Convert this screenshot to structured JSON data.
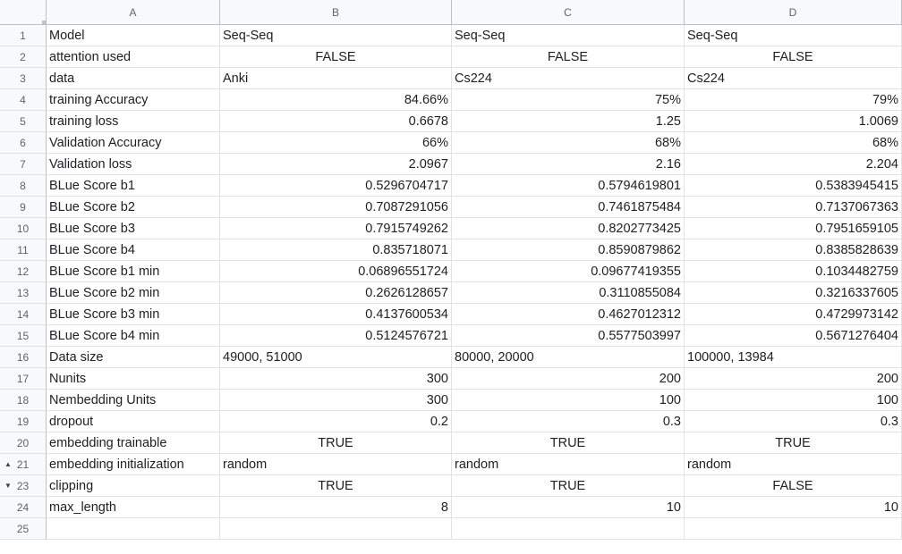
{
  "columns": [
    "A",
    "B",
    "C",
    "D"
  ],
  "rows": [
    {
      "num": "1",
      "arrow": "",
      "cells": [
        {
          "v": "Model",
          "a": "l"
        },
        {
          "v": "Seq-Seq",
          "a": "l"
        },
        {
          "v": "Seq-Seq",
          "a": "l"
        },
        {
          "v": "Seq-Seq",
          "a": "l"
        }
      ]
    },
    {
      "num": "2",
      "arrow": "",
      "cells": [
        {
          "v": " attention used",
          "a": "l"
        },
        {
          "v": "FALSE",
          "a": "c"
        },
        {
          "v": "FALSE",
          "a": "c"
        },
        {
          "v": "FALSE",
          "a": "c"
        }
      ]
    },
    {
      "num": "3",
      "arrow": "",
      "cells": [
        {
          "v": "data",
          "a": "l"
        },
        {
          "v": "Anki",
          "a": "l"
        },
        {
          "v": "Cs224",
          "a": "l"
        },
        {
          "v": "Cs224",
          "a": "l"
        }
      ]
    },
    {
      "num": "4",
      "arrow": "",
      "cells": [
        {
          "v": "training Accuracy",
          "a": "l"
        },
        {
          "v": "84.66%",
          "a": "r"
        },
        {
          "v": "75%",
          "a": "r"
        },
        {
          "v": "79%",
          "a": "r"
        }
      ]
    },
    {
      "num": "5",
      "arrow": "",
      "cells": [
        {
          "v": "training loss",
          "a": "l"
        },
        {
          "v": "0.6678",
          "a": "r"
        },
        {
          "v": "1.25",
          "a": "r"
        },
        {
          "v": "1.0069",
          "a": "r"
        }
      ]
    },
    {
      "num": "6",
      "arrow": "",
      "cells": [
        {
          "v": "Validation Accuracy",
          "a": "l"
        },
        {
          "v": "66%",
          "a": "r"
        },
        {
          "v": "68%",
          "a": "r"
        },
        {
          "v": "68%",
          "a": "r"
        }
      ]
    },
    {
      "num": "7",
      "arrow": "",
      "cells": [
        {
          "v": "Validation loss",
          "a": "l"
        },
        {
          "v": "2.0967",
          "a": "r"
        },
        {
          "v": "2.16",
          "a": "r"
        },
        {
          "v": "2.204",
          "a": "r"
        }
      ]
    },
    {
      "num": "8",
      "arrow": "",
      "cells": [
        {
          "v": "BLue Score b1",
          "a": "l"
        },
        {
          "v": "0.5296704717",
          "a": "r"
        },
        {
          "v": "0.5794619801",
          "a": "r"
        },
        {
          "v": "0.5383945415",
          "a": "r"
        }
      ]
    },
    {
      "num": "9",
      "arrow": "",
      "cells": [
        {
          "v": "BLue Score b2",
          "a": "l"
        },
        {
          "v": "0.7087291056",
          "a": "r"
        },
        {
          "v": "0.7461875484",
          "a": "r"
        },
        {
          "v": "0.7137067363",
          "a": "r"
        }
      ]
    },
    {
      "num": "10",
      "arrow": "",
      "cells": [
        {
          "v": "BLue Score b3",
          "a": "l"
        },
        {
          "v": "0.7915749262",
          "a": "r"
        },
        {
          "v": "0.8202773425",
          "a": "r"
        },
        {
          "v": "0.7951659105",
          "a": "r"
        }
      ]
    },
    {
      "num": "11",
      "arrow": "",
      "cells": [
        {
          "v": "BLue Score b4",
          "a": "l"
        },
        {
          "v": "0.835718071",
          "a": "r"
        },
        {
          "v": "0.8590879862",
          "a": "r"
        },
        {
          "v": "0.8385828639",
          "a": "r"
        }
      ]
    },
    {
      "num": "12",
      "arrow": "",
      "cells": [
        {
          "v": "BLue Score b1 min",
          "a": "l"
        },
        {
          "v": "0.06896551724",
          "a": "r"
        },
        {
          "v": "0.09677419355",
          "a": "r"
        },
        {
          "v": "0.1034482759",
          "a": "r"
        }
      ]
    },
    {
      "num": "13",
      "arrow": "",
      "cells": [
        {
          "v": "BLue Score b2 min",
          "a": "l"
        },
        {
          "v": "0.2626128657",
          "a": "r"
        },
        {
          "v": "0.3110855084",
          "a": "r"
        },
        {
          "v": "0.3216337605",
          "a": "r"
        }
      ]
    },
    {
      "num": "14",
      "arrow": "",
      "cells": [
        {
          "v": "BLue Score b3 min",
          "a": "l"
        },
        {
          "v": "0.4137600534",
          "a": "r"
        },
        {
          "v": "0.4627012312",
          "a": "r"
        },
        {
          "v": "0.4729973142",
          "a": "r"
        }
      ]
    },
    {
      "num": "15",
      "arrow": "",
      "cells": [
        {
          "v": "BLue Score b4 min",
          "a": "l"
        },
        {
          "v": "0.5124576721",
          "a": "r"
        },
        {
          "v": "0.5577503997",
          "a": "r"
        },
        {
          "v": "0.5671276404",
          "a": "r"
        }
      ]
    },
    {
      "num": "16",
      "arrow": "",
      "cells": [
        {
          "v": "Data size",
          "a": "l"
        },
        {
          "v": "49000, 51000",
          "a": "l"
        },
        {
          "v": "80000, 20000",
          "a": "l"
        },
        {
          "v": "100000, 13984",
          "a": "l"
        }
      ]
    },
    {
      "num": "17",
      "arrow": "",
      "cells": [
        {
          "v": "Nunits",
          "a": "l"
        },
        {
          "v": "300",
          "a": "r"
        },
        {
          "v": "200",
          "a": "r"
        },
        {
          "v": "200",
          "a": "r"
        }
      ]
    },
    {
      "num": "18",
      "arrow": "",
      "cells": [
        {
          "v": "Nembedding Units",
          "a": "l"
        },
        {
          "v": "300",
          "a": "r"
        },
        {
          "v": "100",
          "a": "r"
        },
        {
          "v": "100",
          "a": "r"
        }
      ]
    },
    {
      "num": "19",
      "arrow": "",
      "cells": [
        {
          "v": "dropout",
          "a": "l"
        },
        {
          "v": "0.2",
          "a": "r"
        },
        {
          "v": "0.3",
          "a": "r"
        },
        {
          "v": "0.3",
          "a": "r"
        }
      ]
    },
    {
      "num": "20",
      "arrow": "",
      "cells": [
        {
          "v": "embedding trainable",
          "a": "l"
        },
        {
          "v": "TRUE",
          "a": "c"
        },
        {
          "v": "TRUE",
          "a": "c"
        },
        {
          "v": "TRUE",
          "a": "c"
        }
      ]
    },
    {
      "num": "21",
      "arrow": "▲",
      "cells": [
        {
          "v": "embedding initialization",
          "a": "l"
        },
        {
          "v": "random",
          "a": "l"
        },
        {
          "v": "random",
          "a": "l"
        },
        {
          "v": "random",
          "a": "l"
        }
      ]
    },
    {
      "num": "23",
      "arrow": "▼",
      "cells": [
        {
          "v": "clipping",
          "a": "l"
        },
        {
          "v": "TRUE",
          "a": "c"
        },
        {
          "v": "TRUE",
          "a": "c"
        },
        {
          "v": "FALSE",
          "a": "c"
        }
      ]
    },
    {
      "num": "24",
      "arrow": "",
      "cells": [
        {
          "v": "max_length",
          "a": "l"
        },
        {
          "v": "8",
          "a": "r"
        },
        {
          "v": "10",
          "a": "r"
        },
        {
          "v": "10",
          "a": "r"
        }
      ]
    },
    {
      "num": "25",
      "arrow": "",
      "cells": [
        {
          "v": "",
          "a": "l"
        },
        {
          "v": "",
          "a": "l"
        },
        {
          "v": "",
          "a": "l"
        },
        {
          "v": "",
          "a": "l"
        }
      ]
    }
  ]
}
